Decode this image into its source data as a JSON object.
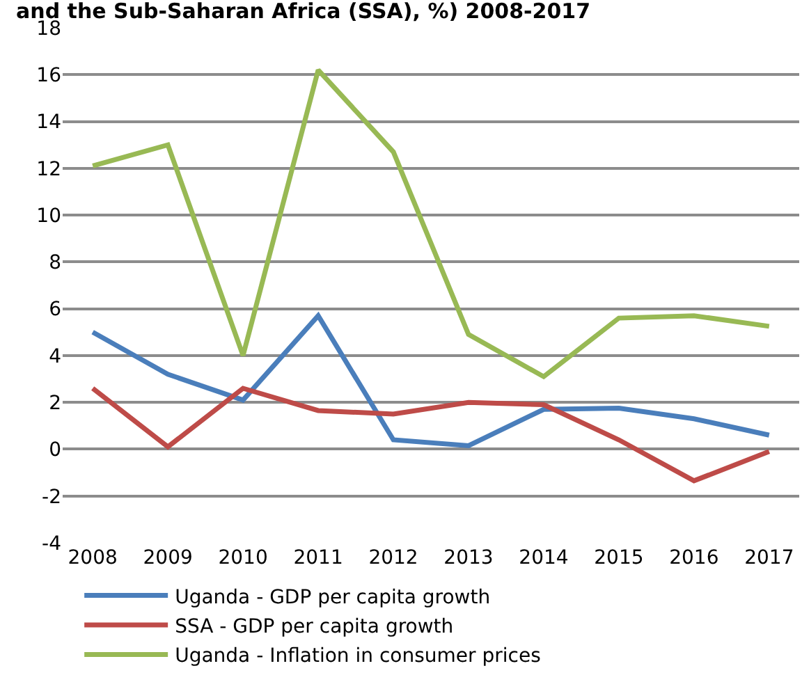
{
  "chart_data": {
    "type": "line",
    "title": "and the Sub-Saharan Africa (SSA), %) 2008-2017",
    "categories": [
      "2008",
      "2009",
      "2010",
      "2011",
      "2012",
      "2013",
      "2014",
      "2015",
      "2016",
      "2017"
    ],
    "series": [
      {
        "name": "Uganda - GDP per capita growth",
        "color": "#4a7ebb",
        "values": [
          5.0,
          3.2,
          2.1,
          5.7,
          0.4,
          0.15,
          1.7,
          1.75,
          1.3,
          0.6
        ]
      },
      {
        "name": "SSA - GDP per capita growth",
        "color": "#be4b48",
        "values": [
          2.6,
          0.1,
          2.6,
          1.65,
          1.5,
          2.0,
          1.9,
          0.4,
          -1.35,
          -0.1
        ]
      },
      {
        "name": "Uganda - Inflation in consumer prices",
        "color": "#98b954",
        "values": [
          12.1,
          13.0,
          4.0,
          16.2,
          12.7,
          4.9,
          3.1,
          5.6,
          5.7,
          5.25
        ]
      }
    ],
    "ylim": [
      -4,
      18
    ],
    "yticks": [
      -4,
      -2,
      0,
      2,
      4,
      6,
      8,
      10,
      12,
      14,
      16,
      18
    ],
    "grid": "y",
    "legend": "bottom",
    "marker": "none",
    "line_style": "solid"
  }
}
